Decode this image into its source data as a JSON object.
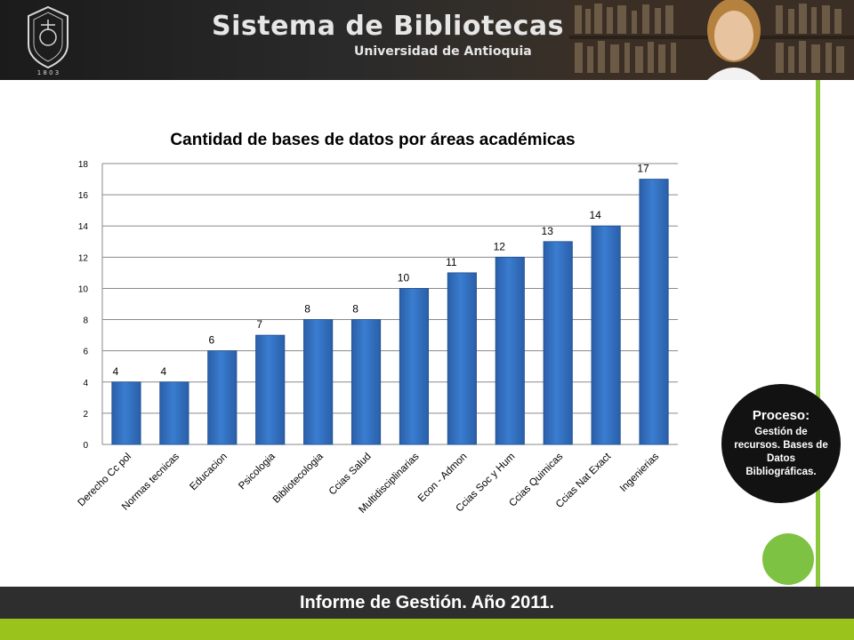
{
  "header": {
    "title": "Sistema de Bibliotecas",
    "subtitle": "Universidad de Antioquia",
    "logo_year": "1 8 0 3"
  },
  "process": {
    "title": "Proceso:",
    "text": "Gestión de recursos. Bases de Datos Bibliográficas."
  },
  "footer": {
    "text": "Informe de Gestión. Año 2011."
  },
  "colors": {
    "bar": "#3a7dd0",
    "accent_green": "#8cc63f",
    "footer_bg": "#2e2e2e"
  },
  "chart_data": {
    "type": "bar",
    "title": "Cantidad de bases de datos por áreas académicas",
    "categories": [
      "Derecho Cc pol",
      "Normas tecnicas",
      "Educacion",
      "Psicologia",
      "Bibliotecologia",
      "Ccias Salud",
      "Multidisciplinarias",
      "Econ - Admon",
      "Ccias Soc y Hum",
      "Ccias Quimicas",
      "Ccias Nat Exact",
      "Ingenierias"
    ],
    "values": [
      4,
      4,
      6,
      7,
      8,
      8,
      10,
      11,
      12,
      13,
      14,
      17
    ],
    "ylim": [
      0,
      18
    ],
    "yticks": [
      0,
      2,
      4,
      6,
      8,
      10,
      12,
      14,
      16,
      18
    ],
    "grid": true,
    "data_labels": true
  }
}
